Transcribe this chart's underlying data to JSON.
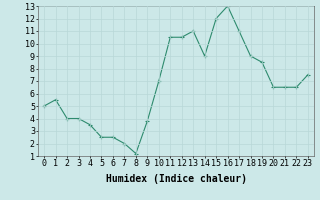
{
  "x": [
    0,
    1,
    2,
    3,
    4,
    5,
    6,
    7,
    8,
    9,
    10,
    11,
    12,
    13,
    14,
    15,
    16,
    17,
    18,
    19,
    20,
    21,
    22,
    23
  ],
  "y": [
    5.0,
    5.5,
    4.0,
    4.0,
    3.5,
    2.5,
    2.5,
    2.0,
    1.2,
    3.8,
    7.0,
    10.5,
    10.5,
    11.0,
    9.0,
    12.0,
    13.0,
    11.0,
    9.0,
    8.5,
    6.5,
    6.5,
    6.5,
    7.5
  ],
  "line_color": "#2e8b6e",
  "marker_color": "#2e8b6e",
  "bg_color": "#cce8e8",
  "grid_color": "#b8d8d8",
  "xlabel": "Humidex (Indice chaleur)",
  "xlim": [
    -0.5,
    23.5
  ],
  "ylim": [
    1,
    13
  ],
  "xticks": [
    0,
    1,
    2,
    3,
    4,
    5,
    6,
    7,
    8,
    9,
    10,
    11,
    12,
    13,
    14,
    15,
    16,
    17,
    18,
    19,
    20,
    21,
    22,
    23
  ],
  "yticks": [
    1,
    2,
    3,
    4,
    5,
    6,
    7,
    8,
    9,
    10,
    11,
    12,
    13
  ],
  "label_fontsize": 7,
  "tick_fontsize": 6
}
